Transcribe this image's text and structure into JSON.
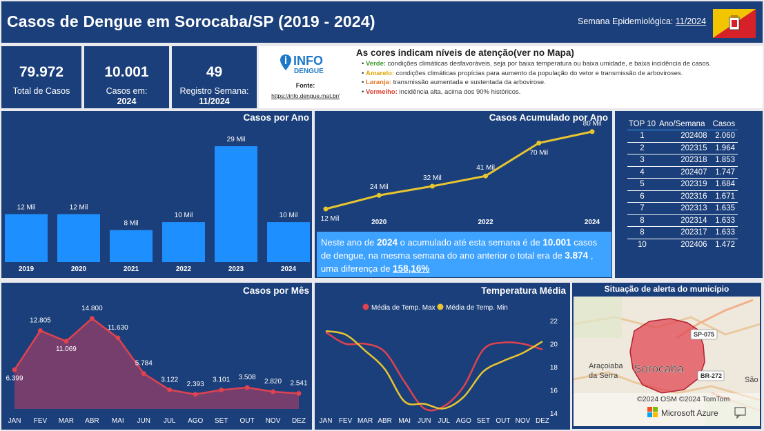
{
  "header": {
    "title": "Casos de Dengue em Sorocaba/SP (2019 - 2024)",
    "week_label": "Semana Epidemiológica:",
    "week_value": "11/2024",
    "flag_icon": "sorocaba-flag-icon"
  },
  "kpis": {
    "total_value": "79.972",
    "total_label": "Total de Casos",
    "year_value": "10.001",
    "year_label": "Casos em:",
    "year_year": "2024",
    "week_value": "49",
    "week_label": "Registro Semana:",
    "week_week": "11/2024"
  },
  "info": {
    "logo_top": "INFO",
    "logo_bottom": "DENGUE",
    "fonte_label": "Fonte:",
    "fonte_link": "https://info.dengue.mat.br/"
  },
  "legend": {
    "title": "As cores indicam níveis de atenção(ver no Mapa)",
    "items": [
      {
        "name": "Verde",
        "color": "#3a9a2b",
        "text": " condições climáticas desfavoráveis, seja por baixa temperatura ou baixa umidade, e baixa incidência de casos."
      },
      {
        "name": "Amarelo",
        "color": "#e0a400",
        "text": " condições climáticas propícias para aumento da população do vetor e transmissão de arboviroses."
      },
      {
        "name": "Laranja",
        "color": "#e87722",
        "text": " transmissão aumentada e sustentada da arbovirose."
      },
      {
        "name": "Vermelho",
        "color": "#d63a2a",
        "text": " incidência alta, acima dos 90% históricos."
      }
    ]
  },
  "colors": {
    "panel": "#1b3f7a",
    "bar": "#1e8fff",
    "line_yellow": "#e8c530",
    "line_red": "#e0424f",
    "summary_bg": "#3ea2ff"
  },
  "charts": {
    "by_year_title": "Casos por Ano",
    "acc_title": "Casos Acumulado por Ano",
    "month_title": "Casos por Mês",
    "temp_title": "Temperatura Média",
    "map_title": "Situação de alerta do município"
  },
  "chart_data": [
    {
      "type": "bar",
      "title": "Casos por Ano",
      "categories": [
        "2019",
        "2020",
        "2021",
        "2022",
        "2023",
        "2024"
      ],
      "values": [
        12,
        12,
        8,
        10,
        29,
        10
      ],
      "labels": [
        "12 Mil",
        "12 Mil",
        "8 Mil",
        "10 Mil",
        "29 Mil",
        "10 Mil"
      ],
      "ylim": [
        0,
        30
      ]
    },
    {
      "type": "line",
      "title": "Casos Acumulado por Ano",
      "x": [
        "2019",
        "2020",
        "2021",
        "2022",
        "2023",
        "2024"
      ],
      "x_ticks": [
        "2020",
        "2022",
        "2024"
      ],
      "values": [
        12,
        24,
        32,
        41,
        70,
        80
      ],
      "labels": [
        "12 Mil",
        "24 Mil",
        "32 Mil",
        "41 Mil",
        "70 Mil",
        "80 Mil"
      ],
      "ylim": [
        0,
        85
      ]
    },
    {
      "type": "area",
      "title": "Casos por Mês",
      "categories": [
        "JAN",
        "FEV",
        "MAR",
        "ABR",
        "MAI",
        "JUN",
        "JUL",
        "AGO",
        "SET",
        "OUT",
        "NOV",
        "DEZ"
      ],
      "values": [
        6399,
        12805,
        11069,
        14800,
        11630,
        5784,
        3122,
        2393,
        3101,
        3508,
        2820,
        2541
      ],
      "labels": [
        "6.399",
        "12.805",
        "11.069",
        "14.800",
        "11.630",
        "5.784",
        "3.122",
        "2.393",
        "3.101",
        "3.508",
        "2.820",
        "2.541"
      ],
      "ylim": [
        0,
        16000
      ]
    },
    {
      "type": "line",
      "title": "Temperatura Média",
      "categories": [
        "JAN",
        "FEV",
        "MAR",
        "ABR",
        "MAI",
        "JUN",
        "JUL",
        "AGO",
        "SET",
        "OUT",
        "NOV",
        "DEZ"
      ],
      "series": [
        {
          "name": "Média de Temp. Max",
          "values": [
            21.0,
            20.0,
            20.0,
            19.3,
            16.7,
            14.4,
            14.6,
            16.3,
            19.5,
            20.1,
            20.0,
            19.5
          ]
        },
        {
          "name": "Média de Temp. Min",
          "values": [
            21.1,
            20.8,
            19.4,
            17.8,
            15.0,
            14.8,
            14.4,
            15.4,
            17.6,
            18.5,
            19.2,
            20.2
          ]
        }
      ],
      "y_ticks": [
        "22",
        "20",
        "18",
        "16",
        "14"
      ],
      "ylim": [
        13.5,
        22.8
      ]
    },
    {
      "type": "table",
      "title": "TOP 10",
      "columns": [
        "TOP 10",
        "Ano/Semana",
        "Casos"
      ],
      "rows": [
        [
          "1",
          "202408",
          "2.060"
        ],
        [
          "2",
          "202315",
          "1.964"
        ],
        [
          "3",
          "202318",
          "1.853"
        ],
        [
          "4",
          "202407",
          "1.747"
        ],
        [
          "5",
          "202319",
          "1.684"
        ],
        [
          "6",
          "202316",
          "1.671"
        ],
        [
          "7",
          "202313",
          "1.635"
        ],
        [
          "8",
          "202314",
          "1.633"
        ],
        [
          "8",
          "202317",
          "1.633"
        ],
        [
          "10",
          "202406",
          "1.472"
        ]
      ]
    }
  ],
  "summary": {
    "p1": " Neste ano de ",
    "year": "2024",
    "p2": " o acumulado até esta semana é de ",
    "value": "10.001",
    "p3": " casos de dengue, na mesma semana do ano anterior o total era de ",
    "prev": "3.874",
    "p4": " , uma diferença de ",
    "diff": "158,16%"
  },
  "map": {
    "label_city": "Sorocaba",
    "label_ara": "Araçoiaba da Serra",
    "label_sao": "São",
    "road1": "SP-075",
    "road2": "BR-272",
    "copyright": "©2024 OSM ©2024 TomTom",
    "brand": "Microsoft Azure"
  }
}
